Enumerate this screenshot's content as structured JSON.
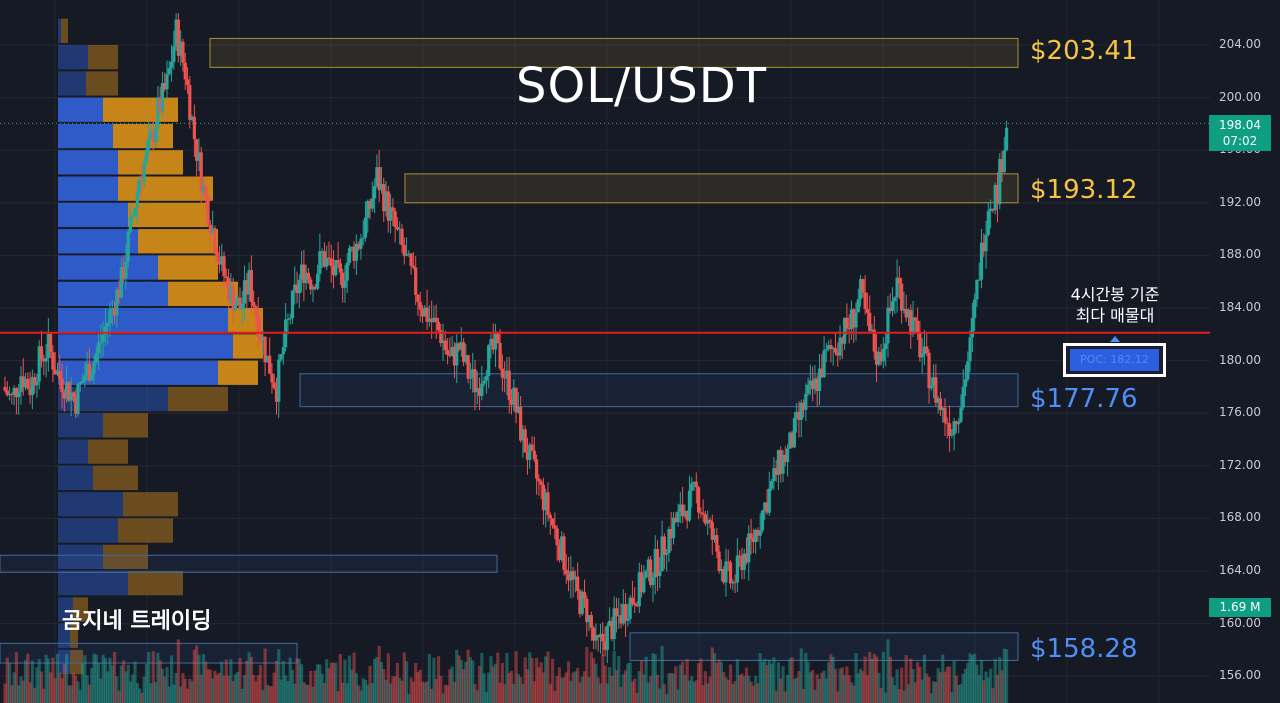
{
  "title": "SOL/USDT",
  "brand": "곰지네 트레이딩",
  "poc_note": "4시간봉 기준\n최다 매물대",
  "poc_label": "POC: 182.12",
  "last_price": {
    "value": "198.04",
    "countdown": "07:02"
  },
  "volume_label": "1.69 M",
  "levels": [
    {
      "label": "$203.41",
      "color": "#f6c343"
    },
    {
      "label": "$193.12",
      "color": "#f6c343"
    },
    {
      "label": "$177.76",
      "color": "#4f8ff7"
    },
    {
      "label": "$158.28",
      "color": "#4f8ff7"
    }
  ],
  "colors": {
    "up": "#26a69a",
    "down": "#ef5350",
    "poc_line": "#e01f1f",
    "vp_up": "#2f5fd0",
    "vp_down": "#d08a18"
  },
  "chart_data": {
    "type": "candlestick",
    "title": "SOL/USDT",
    "xlabel": "",
    "ylabel": "",
    "ylim": [
      154.4,
      206.0
    ],
    "yticks": [
      "204.00",
      "200.00",
      "196.00",
      "192.00",
      "188.00",
      "184.00",
      "180.00",
      "176.00",
      "172.00",
      "168.00",
      "164.00",
      "160.00",
      "156.00"
    ],
    "poc": 182.12,
    "last_price": 198.04,
    "zones": [
      {
        "low": 202.3,
        "high": 204.5,
        "type": "resistance",
        "label": "$203.41"
      },
      {
        "low": 192.0,
        "high": 194.2,
        "type": "resistance",
        "label": "$193.12"
      },
      {
        "low": 176.5,
        "high": 179.0,
        "type": "support",
        "label": "$177.76"
      },
      {
        "low": 157.2,
        "high": 159.3,
        "type": "support",
        "label": "$158.28"
      },
      {
        "low": 163.9,
        "high": 165.2,
        "type": "support",
        "label": ""
      },
      {
        "low": 157.0,
        "high": 158.5,
        "type": "support",
        "label": ""
      }
    ],
    "volume_profile": {
      "bins": [
        {
          "price": 205.0,
          "buy": 3,
          "sell": 10
        },
        {
          "price": 203.0,
          "buy": 30,
          "sell": 60
        },
        {
          "price": 201.0,
          "buy": 28,
          "sell": 60
        },
        {
          "price": 199.0,
          "buy": 45,
          "sell": 120
        },
        {
          "price": 197.0,
          "buy": 55,
          "sell": 115
        },
        {
          "price": 195.0,
          "buy": 60,
          "sell": 125
        },
        {
          "price": 193.0,
          "buy": 60,
          "sell": 155
        },
        {
          "price": 191.0,
          "buy": 70,
          "sell": 150
        },
        {
          "price": 189.0,
          "buy": 80,
          "sell": 160
        },
        {
          "price": 187.0,
          "buy": 100,
          "sell": 160
        },
        {
          "price": 185.0,
          "buy": 110,
          "sell": 180
        },
        {
          "price": 183.0,
          "buy": 170,
          "sell": 205
        },
        {
          "price": 181.0,
          "buy": 175,
          "sell": 205
        },
        {
          "price": 179.0,
          "buy": 160,
          "sell": 200
        },
        {
          "price": 177.0,
          "buy": 110,
          "sell": 170
        },
        {
          "price": 175.0,
          "buy": 45,
          "sell": 90
        },
        {
          "price": 173.0,
          "buy": 30,
          "sell": 70
        },
        {
          "price": 171.0,
          "buy": 35,
          "sell": 80
        },
        {
          "price": 169.0,
          "buy": 65,
          "sell": 120
        },
        {
          "price": 167.0,
          "buy": 60,
          "sell": 115
        },
        {
          "price": 165.0,
          "buy": 45,
          "sell": 90
        },
        {
          "price": 163.0,
          "buy": 70,
          "sell": 125
        },
        {
          "price": 161.0,
          "buy": 15,
          "sell": 30
        },
        {
          "price": 159.0,
          "buy": 12,
          "sell": 20
        },
        {
          "price": 157.0,
          "buy": 12,
          "sell": 25
        }
      ]
    },
    "close_path": [
      178,
      177,
      179,
      178,
      180,
      181,
      179,
      178,
      177,
      179,
      180,
      182,
      184,
      186,
      190,
      194,
      196,
      199,
      201,
      205,
      202,
      197,
      193,
      190,
      187,
      185,
      184,
      186,
      183,
      180,
      178,
      182,
      185,
      187,
      186,
      188,
      187,
      186,
      188,
      189,
      191,
      194,
      192,
      190,
      188,
      186,
      184,
      183,
      182,
      180,
      181,
      179,
      178,
      180,
      181,
      179,
      177,
      174,
      172,
      170,
      168,
      166,
      164,
      162,
      161,
      158,
      159,
      160,
      161,
      162,
      163,
      164,
      165,
      167,
      168,
      169,
      170,
      168,
      166,
      164,
      163,
      165,
      166,
      168,
      170,
      172,
      173,
      175,
      177,
      178,
      180,
      181,
      182,
      183,
      185,
      182,
      180,
      183,
      186,
      184,
      182,
      180,
      178,
      176,
      175,
      177,
      181,
      187,
      192,
      193,
      198.04
    ]
  }
}
